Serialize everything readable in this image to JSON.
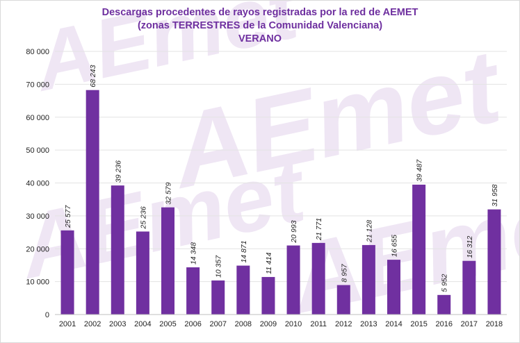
{
  "colors": {
    "bar": "#7030a0",
    "title": "#6e2f9f",
    "grid": "#e3e3e3",
    "watermark": "#efe6f4"
  },
  "watermark_text": "AEmet",
  "chart_data": {
    "type": "bar",
    "title_lines": [
      "Descargas procedentes de rayos registradas por la red de AEMET",
      "(zonas TERRESTRES de la Comunidad Valenciana)",
      "VERANO"
    ],
    "xlabel": "",
    "ylabel": "",
    "ylim": [
      0,
      80000
    ],
    "yticks": [
      0,
      10000,
      20000,
      30000,
      40000,
      50000,
      60000,
      70000,
      80000
    ],
    "ytick_labels": [
      "0",
      "10 000",
      "20 000",
      "30 000",
      "40 000",
      "50 000",
      "60 000",
      "70 000",
      "80 000"
    ],
    "grid": true,
    "legend": "none",
    "categories": [
      "2001",
      "2002",
      "2003",
      "2004",
      "2005",
      "2006",
      "2007",
      "2008",
      "2009",
      "2010",
      "2011",
      "2012",
      "2013",
      "2014",
      "2015",
      "2016",
      "2017",
      "2018"
    ],
    "values": [
      25577,
      68243,
      39236,
      25236,
      32579,
      14348,
      10357,
      14871,
      11414,
      20993,
      21771,
      8957,
      21128,
      16655,
      39487,
      5952,
      16312,
      31958
    ],
    "data_labels": [
      "25 577",
      "68 243",
      "39 236",
      "25 236",
      "32 579",
      "14 348",
      "10 357",
      "14 871",
      "11 414",
      "20 993",
      "21 771",
      "8 957",
      "21 128",
      "16 655",
      "39 487",
      "5 952",
      "16 312",
      "31 958"
    ]
  }
}
